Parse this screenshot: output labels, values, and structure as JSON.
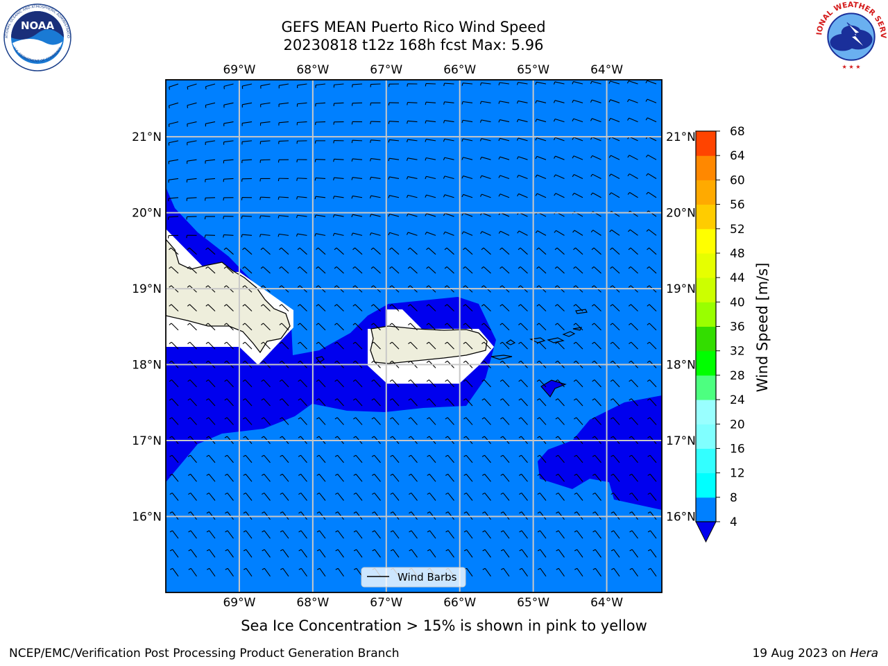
{
  "title_line1": "GEFS MEAN Puerto Rico Wind Speed",
  "title_line2": "20230818 t12z 168h fcst   Max: 5.96",
  "footnote": "Sea Ice Concentration > 15% is shown in pink to yellow",
  "credit_left": "NCEP/EMC/Verification Post Processing Product Generation Branch",
  "credit_right_date": "19 Aug 2023 on ",
  "credit_right_host": "Hera",
  "logos": {
    "noaa_text": "NOAA",
    "noaa_ring_text": "NATIONAL OCEANIC AND ATMOSPHERIC ADMINISTRATION",
    "noaa_ring_bottom": "U.S. DEPARTMENT OF COMMERCE",
    "nws_ring_text": "NATIONAL WEATHER SERVICE"
  },
  "colors": {
    "ocean_4_8": "#0080ff",
    "ocean_below_4": "#0000ee",
    "land": "#eeeedc",
    "white_mask": "#ffffff"
  },
  "chart_data": {
    "type": "heatmap",
    "variable": "Wind Speed [m/s]",
    "max_value": 5.96,
    "lon_range": [
      -70,
      -63.25
    ],
    "lat_range": [
      15,
      21.75
    ],
    "lon_ticks": [
      "69°W",
      "68°W",
      "67°W",
      "66°W",
      "65°W",
      "64°W"
    ],
    "lat_ticks": [
      "21°N",
      "20°N",
      "19°N",
      "18°N",
      "17°N",
      "16°N"
    ],
    "lon_tick_values": [
      -69,
      -68,
      -67,
      -66,
      -65,
      -64
    ],
    "lat_tick_values": [
      21,
      20,
      19,
      18,
      17,
      16
    ],
    "grid": true,
    "legend": {
      "label": "Wind Barbs",
      "placement": "bottom-center"
    },
    "colorbar": {
      "label": "Wind Speed [m/s]",
      "ticks": [
        "68",
        "64",
        "60",
        "56",
        "52",
        "48",
        "44",
        "40",
        "36",
        "32",
        "28",
        "24",
        "20",
        "16",
        "12",
        "8",
        "4"
      ],
      "levels": [
        4,
        8,
        12,
        16,
        20,
        24,
        28,
        32,
        36,
        40,
        44,
        48,
        52,
        56,
        60,
        64,
        68
      ],
      "colors": [
        "#0080ff",
        "#00ffff",
        "#33ffff",
        "#80ffff",
        "#99ffff",
        "#4dff80",
        "#00ff00",
        "#33dd00",
        "#99ff00",
        "#ccff00",
        "#e6ff00",
        "#ffff00",
        "#ffcc00",
        "#ffaa00",
        "#ff8800",
        "#ff4400",
        "#ff0000"
      ],
      "under_color": "#0000ee",
      "extend": "min"
    }
  }
}
